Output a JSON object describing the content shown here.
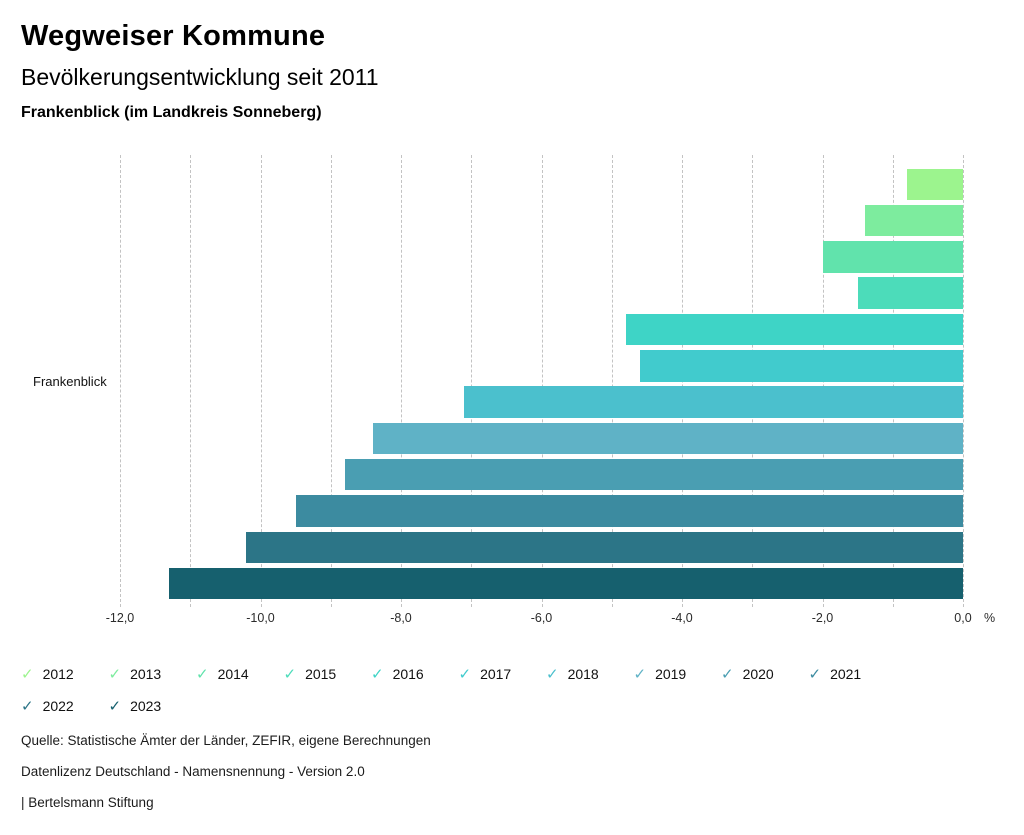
{
  "header": {
    "title": "Wegweiser Kommune",
    "subtitle": "Bevölkerungsentwicklung seit 2011",
    "region": "Frankenblick (im Landkreis Sonneberg)"
  },
  "chart_data": {
    "type": "bar",
    "orientation": "horizontal",
    "title": "Bevölkerungsentwicklung seit 2011",
    "category_label": "Frankenblick",
    "xlim": [
      -12,
      0
    ],
    "grid_step": 1,
    "unit": "%",
    "legend_position": "bottom",
    "grid": "dashed-vertical",
    "series": [
      {
        "name": "2012",
        "value": -0.8,
        "color": "#9cf48e"
      },
      {
        "name": "2013",
        "value": -1.4,
        "color": "#7dec9e"
      },
      {
        "name": "2014",
        "value": -2.0,
        "color": "#61e3ac"
      },
      {
        "name": "2015",
        "value": -1.5,
        "color": "#4cdcba"
      },
      {
        "name": "2016",
        "value": -4.8,
        "color": "#3ed4c6"
      },
      {
        "name": "2017",
        "value": -4.6,
        "color": "#41cbcd"
      },
      {
        "name": "2018",
        "value": -7.1,
        "color": "#4bc0cd"
      },
      {
        "name": "2019",
        "value": -8.4,
        "color": "#5fb2c6"
      },
      {
        "name": "2020",
        "value": -8.8,
        "color": "#4a9eb2"
      },
      {
        "name": "2021",
        "value": -9.5,
        "color": "#3c8ba0"
      },
      {
        "name": "2022",
        "value": -10.2,
        "color": "#2c7587"
      },
      {
        "name": "2023",
        "value": -11.3,
        "color": "#16606e"
      }
    ]
  },
  "axis": {
    "ticks": [
      {
        "label": "-12,0",
        "value": -12
      },
      {
        "label": "-10,0",
        "value": -10
      },
      {
        "label": "-8,0",
        "value": -8
      },
      {
        "label": "-6,0",
        "value": -6
      },
      {
        "label": "-4,0",
        "value": -4
      },
      {
        "label": "-2,0",
        "value": -2
      },
      {
        "label": "0,0",
        "value": 0
      }
    ],
    "unit_label": "%"
  },
  "legend": {
    "check_glyph": "✓",
    "items_per_row": 10
  },
  "footer": {
    "line1": "Quelle: Statistische Ämter der Länder, ZEFIR, eigene Berechnungen",
    "line2": "Datenlizenz Deutschland - Namensnennung - Version 2.0",
    "line3": "| Bertelsmann Stiftung"
  }
}
